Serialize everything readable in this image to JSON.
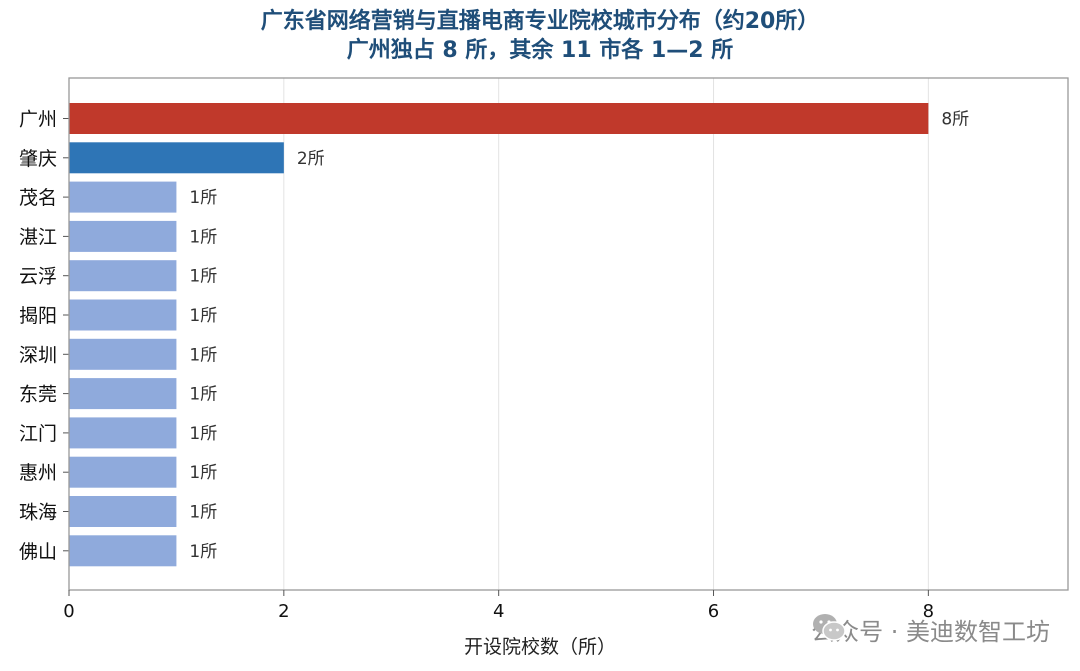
{
  "chart_data": {
    "type": "bar",
    "orientation": "horizontal",
    "title": "广东省网络营销与直播电商专业院校城市分布（约20所）",
    "subtitle": "广州独占 8 所，其余 11 市各 1—2 所",
    "xlabel": "开设院校数（所）",
    "ylabel": "",
    "xlim": [
      0,
      9.3
    ],
    "xticks": [
      0,
      2,
      4,
      6,
      8
    ],
    "grid": "x",
    "categories": [
      "广州",
      "肇庆",
      "茂名",
      "湛江",
      "云浮",
      "揭阳",
      "深圳",
      "东莞",
      "江门",
      "惠州",
      "珠海",
      "佛山"
    ],
    "values": [
      8,
      2,
      1,
      1,
      1,
      1,
      1,
      1,
      1,
      1,
      1,
      1
    ],
    "data_labels": [
      "8所",
      "2所",
      "1所",
      "1所",
      "1所",
      "1所",
      "1所",
      "1所",
      "1所",
      "1所",
      "1所",
      "1所"
    ],
    "colors": [
      "#c0392b",
      "#2e75b6",
      "#8faadc",
      "#8faadc",
      "#8faadc",
      "#8faadc",
      "#8faadc",
      "#8faadc",
      "#8faadc",
      "#8faadc",
      "#8faadc",
      "#8faadc"
    ]
  },
  "watermark": {
    "text": "公众号 · 美迪数智工坊",
    "icon": "wechat-icon"
  }
}
